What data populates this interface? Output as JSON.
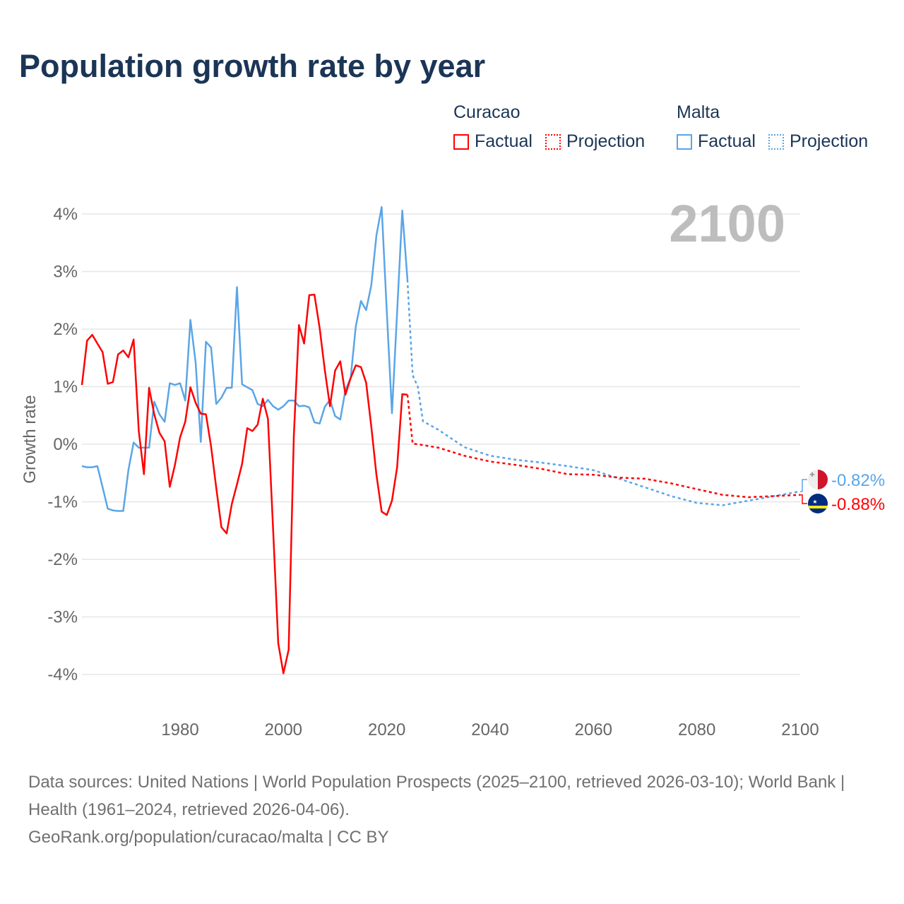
{
  "chart_data": {
    "type": "line",
    "title": "Population growth rate by year",
    "ylabel": "Growth rate",
    "xlabel": "",
    "xlim": [
      1961,
      2100
    ],
    "ylim": [
      -4,
      4
    ],
    "x_ticks": [
      "1980",
      "2000",
      "2020",
      "2040",
      "2060",
      "2080",
      "2100"
    ],
    "y_ticks": [
      "4%",
      "3%",
      "2%",
      "1%",
      "0%",
      "-1%",
      "-2%",
      "-3%",
      "-4%"
    ],
    "grid": true,
    "year_label": "2100",
    "legend": {
      "placement": "top-right",
      "groups": [
        {
          "country": "Curacao",
          "factual": "Factual",
          "projection": "Projection",
          "color": "#ff0000"
        },
        {
          "country": "Malta",
          "factual": "Factual",
          "projection": "Projection",
          "color": "#5aa5e8"
        }
      ]
    },
    "series": [
      {
        "name": "Curacao",
        "color": "#ff0000",
        "end_label": "-0.88%",
        "factual": {
          "x": [
            1961,
            1962,
            1963,
            1964,
            1965,
            1966,
            1967,
            1968,
            1969,
            1970,
            1971,
            1972,
            1973,
            1974,
            1975,
            1976,
            1977,
            1978,
            1979,
            1980,
            1981,
            1982,
            1983,
            1984,
            1985,
            1986,
            1987,
            1988,
            1989,
            1990,
            1991,
            1992,
            1993,
            1994,
            1995,
            1996,
            1997,
            1998,
            1999,
            2000,
            2001,
            2002,
            2003,
            2004,
            2005,
            2006,
            2007,
            2008,
            2009,
            2010,
            2011,
            2012,
            2013,
            2014,
            2015,
            2016,
            2017,
            2018,
            2019,
            2020,
            2021,
            2022,
            2023,
            2024
          ],
          "y": [
            1.03,
            1.8,
            1.9,
            1.75,
            1.6,
            1.05,
            1.08,
            1.56,
            1.63,
            1.51,
            1.82,
            0.23,
            -0.52,
            0.98,
            0.52,
            0.2,
            0.05,
            -0.74,
            -0.36,
            0.12,
            0.39,
            0.99,
            0.72,
            0.53,
            0.52,
            -0.04,
            -0.76,
            -1.44,
            -1.55,
            -1.04,
            -0.7,
            -0.34,
            0.28,
            0.23,
            0.34,
            0.79,
            0.44,
            -1.48,
            -3.46,
            -3.98,
            -3.57,
            0.13,
            2.07,
            1.75,
            2.59,
            2.6,
            2.02,
            1.29,
            0.66,
            1.28,
            1.44,
            0.86,
            1.15,
            1.37,
            1.34,
            1.07,
            0.31,
            -0.53,
            -1.17,
            -1.23,
            -0.98,
            -0.4,
            0.87,
            0.86
          ]
        },
        "projection": {
          "x": [
            2024,
            2025,
            2026,
            2030,
            2035,
            2040,
            2045,
            2050,
            2055,
            2060,
            2065,
            2070,
            2075,
            2080,
            2085,
            2090,
            2095,
            2100
          ],
          "y": [
            0.86,
            0.01,
            0.0,
            -0.06,
            -0.2,
            -0.3,
            -0.36,
            -0.43,
            -0.52,
            -0.53,
            -0.58,
            -0.6,
            -0.68,
            -0.78,
            -0.88,
            -0.92,
            -0.9,
            -0.88
          ]
        }
      },
      {
        "name": "Malta",
        "color": "#5aa5e8",
        "end_label": "-0.82%",
        "factual": {
          "x": [
            1961,
            1962,
            1963,
            1964,
            1965,
            1966,
            1967,
            1968,
            1969,
            1970,
            1971,
            1972,
            1973,
            1974,
            1975,
            1976,
            1977,
            1978,
            1979,
            1980,
            1981,
            1982,
            1983,
            1984,
            1985,
            1986,
            1987,
            1988,
            1989,
            1990,
            1991,
            1992,
            1993,
            1994,
            1995,
            1996,
            1997,
            1998,
            1999,
            2000,
            2001,
            2002,
            2003,
            2004,
            2005,
            2006,
            2007,
            2008,
            2009,
            2010,
            2011,
            2012,
            2013,
            2014,
            2015,
            2016,
            2017,
            2018,
            2019,
            2020,
            2021,
            2022,
            2023,
            2024
          ],
          "y": [
            -0.38,
            -0.4,
            -0.4,
            -0.38,
            -0.75,
            -1.12,
            -1.15,
            -1.16,
            -1.16,
            -0.45,
            0.03,
            -0.06,
            -0.06,
            -0.06,
            0.74,
            0.52,
            0.39,
            1.06,
            1.03,
            1.06,
            0.76,
            2.16,
            1.42,
            0.04,
            1.78,
            1.68,
            0.7,
            0.81,
            0.98,
            0.98,
            2.73,
            1.04,
            0.99,
            0.94,
            0.7,
            0.66,
            0.77,
            0.66,
            0.6,
            0.66,
            0.76,
            0.76,
            0.66,
            0.67,
            0.64,
            0.38,
            0.36,
            0.65,
            0.77,
            0.49,
            0.43,
            0.94,
            1.15,
            2.05,
            2.49,
            2.33,
            2.76,
            3.63,
            4.12,
            2.3,
            0.54,
            2.3,
            4.06,
            2.86
          ]
        },
        "projection": {
          "x": [
            2024,
            2025,
            2026,
            2027,
            2030,
            2035,
            2040,
            2045,
            2050,
            2055,
            2060,
            2065,
            2070,
            2075,
            2080,
            2085,
            2090,
            2095,
            2100
          ],
          "y": [
            2.86,
            1.2,
            1.0,
            0.4,
            0.25,
            -0.05,
            -0.2,
            -0.27,
            -0.32,
            -0.38,
            -0.45,
            -0.6,
            -0.75,
            -0.9,
            -1.02,
            -1.06,
            -0.98,
            -0.9,
            -0.82
          ]
        }
      }
    ]
  },
  "footer": {
    "sources": "Data sources: United Nations | World Population Prospects (2025–2100, retrieved 2026-03-10); World Bank | Health (1961–2024, retrieved 2026-04-06).",
    "credit": "GeoRank.org/population/curacao/malta | CC BY"
  }
}
